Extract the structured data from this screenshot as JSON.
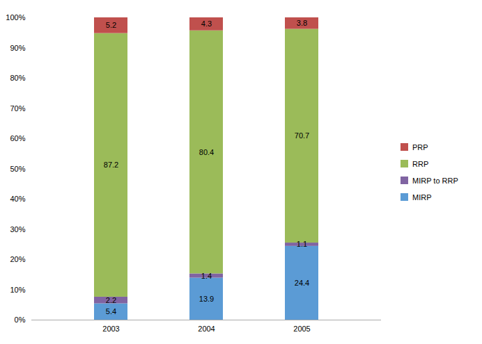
{
  "chart_data": {
    "type": "bar",
    "stacked": true,
    "categories": [
      "2003",
      "2004",
      "2005"
    ],
    "series": [
      {
        "name": "MIRP",
        "color": "#5B9BD5",
        "values": [
          5.4,
          13.9,
          24.4
        ]
      },
      {
        "name": "MIRP to RRP",
        "color": "#8064A2",
        "values": [
          2.2,
          1.4,
          1.1
        ]
      },
      {
        "name": "RRP",
        "color": "#9BBB59",
        "values": [
          87.2,
          80.4,
          70.7
        ]
      },
      {
        "name": "PRP",
        "color": "#C0504D",
        "values": [
          5.2,
          4.3,
          3.8
        ]
      }
    ],
    "ylim": [
      0,
      100
    ],
    "yticks": [
      {
        "value": 0,
        "label": "0%"
      },
      {
        "value": 10,
        "label": "10%"
      },
      {
        "value": 20,
        "label": "20%"
      },
      {
        "value": 30,
        "label": "30%"
      },
      {
        "value": 40,
        "label": "40%"
      },
      {
        "value": 50,
        "label": "50%"
      },
      {
        "value": 60,
        "label": "60%"
      },
      {
        "value": 70,
        "label": "70%"
      },
      {
        "value": 80,
        "label": "80%"
      },
      {
        "value": 90,
        "label": "90%"
      },
      {
        "value": 100,
        "label": "100%"
      }
    ],
    "grid": false,
    "data_labels": true,
    "legend": "right"
  }
}
